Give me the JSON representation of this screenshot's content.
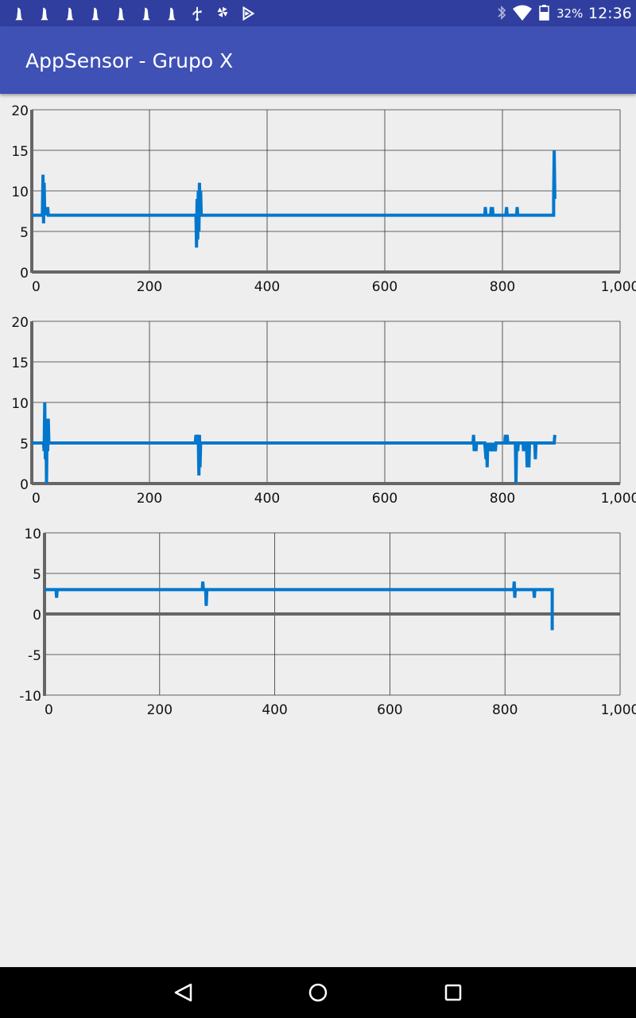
{
  "status_bar": {
    "battery_percent": "32%",
    "time": "12:36",
    "notification_icons": [
      "keyhole-icon",
      "keyhole-icon",
      "keyhole-icon",
      "keyhole-icon",
      "keyhole-icon",
      "keyhole-icon",
      "keyhole-icon",
      "usb-icon",
      "pinwheel-icon",
      "play-store-icon"
    ],
    "system_icons": [
      "bluetooth-icon",
      "wifi-icon",
      "battery-icon"
    ]
  },
  "app_bar": {
    "title": "AppSensor - Grupo X",
    "color": "#3f51b5",
    "status_color": "#303f9f"
  },
  "colors": {
    "series": "#0277cc",
    "axis": "#666666",
    "grid": "#333333",
    "background": "#eeeeee"
  },
  "chart_data": [
    {
      "type": "line",
      "x_ticks": [
        "0",
        "200",
        "400",
        "600",
        "800",
        "1,000"
      ],
      "y_ticks": [
        "0",
        "5",
        "10",
        "15",
        "20"
      ],
      "xlim": [
        0,
        1000
      ],
      "ylim": [
        0,
        20
      ],
      "grid": true,
      "series": [
        {
          "color": "#0277cc",
          "points": [
            [
              0,
              7
            ],
            [
              18,
              7
            ],
            [
              19,
              12
            ],
            [
              20,
              6
            ],
            [
              21,
              11
            ],
            [
              22,
              7
            ],
            [
              24,
              8
            ],
            [
              25,
              7
            ],
            [
              27,
              8
            ],
            [
              28,
              7
            ],
            [
              279,
              7
            ],
            [
              280,
              3
            ],
            [
              281,
              9
            ],
            [
              282,
              4
            ],
            [
              283,
              10
            ],
            [
              284,
              5
            ],
            [
              285,
              11
            ],
            [
              286,
              7
            ],
            [
              287,
              10
            ],
            [
              288,
              7
            ],
            [
              770,
              7
            ],
            [
              771,
              8
            ],
            [
              772,
              7
            ],
            [
              780,
              7
            ],
            [
              781,
              8
            ],
            [
              782,
              7
            ],
            [
              783,
              8
            ],
            [
              784,
              7
            ],
            [
              806,
              7
            ],
            [
              807,
              8
            ],
            [
              808,
              7
            ],
            [
              824,
              7
            ],
            [
              825,
              8
            ],
            [
              826,
              7
            ],
            [
              887,
              7
            ],
            [
              887,
              9
            ],
            [
              888,
              15
            ],
            [
              889,
              9
            ]
          ]
        }
      ]
    },
    {
      "type": "line",
      "x_ticks": [
        "0",
        "200",
        "400",
        "600",
        "800",
        "1,000"
      ],
      "y_ticks": [
        "0",
        "5",
        "10",
        "15",
        "20"
      ],
      "xlim": [
        0,
        1000
      ],
      "ylim": [
        0,
        20
      ],
      "grid": true,
      "series": [
        {
          "color": "#0277cc",
          "points": [
            [
              0,
              5
            ],
            [
              20,
              5
            ],
            [
              21,
              4
            ],
            [
              22,
              10
            ],
            [
              23,
              3
            ],
            [
              24,
              8
            ],
            [
              25,
              0
            ],
            [
              26,
              7
            ],
            [
              27,
              4
            ],
            [
              28,
              8
            ],
            [
              29,
              5
            ],
            [
              278,
              5
            ],
            [
              279,
              6
            ],
            [
              280,
              5
            ],
            [
              283,
              6
            ],
            [
              284,
              1
            ],
            [
              285,
              6
            ],
            [
              286,
              2
            ],
            [
              287,
              5
            ],
            [
              750,
              5
            ],
            [
              751,
              6
            ],
            [
              752,
              4
            ],
            [
              753,
              5
            ],
            [
              755,
              4
            ],
            [
              756,
              5
            ],
            [
              770,
              5
            ],
            [
              772,
              3
            ],
            [
              773,
              5
            ],
            [
              774,
              2
            ],
            [
              775,
              5
            ],
            [
              778,
              4
            ],
            [
              779,
              5
            ],
            [
              783,
              4
            ],
            [
              784,
              5
            ],
            [
              788,
              4
            ],
            [
              789,
              5
            ],
            [
              804,
              5
            ],
            [
              805,
              6
            ],
            [
              806,
              5
            ],
            [
              808,
              6
            ],
            [
              809,
              5
            ],
            [
              822,
              5
            ],
            [
              823,
              0
            ],
            [
              824,
              5
            ],
            [
              826,
              4
            ],
            [
              827,
              5
            ],
            [
              835,
              5
            ],
            [
              836,
              4
            ],
            [
              837,
              5
            ],
            [
              841,
              5
            ],
            [
              842,
              2
            ],
            [
              843,
              5
            ],
            [
              845,
              2
            ],
            [
              846,
              5
            ],
            [
              855,
              5
            ],
            [
              856,
              3
            ],
            [
              857,
              5
            ],
            [
              888,
              5
            ],
            [
              889,
              6
            ]
          ]
        }
      ]
    },
    {
      "type": "line",
      "x_ticks": [
        "0",
        "200",
        "400",
        "600",
        "800",
        "1,000"
      ],
      "y_ticks": [
        "10",
        "5",
        "0",
        "-5",
        "-10"
      ],
      "xlim": [
        0,
        1000
      ],
      "ylim": [
        -10,
        10
      ],
      "grid": true,
      "series": [
        {
          "color": "#0277cc",
          "points": [
            [
              0,
              3
            ],
            [
              20,
              3
            ],
            [
              21,
              2
            ],
            [
              22,
              3
            ],
            [
              274,
              3
            ],
            [
              275,
              4
            ],
            [
              276,
              3
            ],
            [
              280,
              3
            ],
            [
              281,
              1
            ],
            [
              282,
              3
            ],
            [
              815,
              3
            ],
            [
              816,
              4
            ],
            [
              817,
              2
            ],
            [
              818,
              3
            ],
            [
              850,
              3
            ],
            [
              851,
              2
            ],
            [
              852,
              3
            ],
            [
              882,
              3
            ],
            [
              882,
              -2
            ]
          ]
        }
      ]
    }
  ],
  "nav_bar": {
    "buttons": [
      "back-button",
      "home-button",
      "recents-button"
    ]
  }
}
